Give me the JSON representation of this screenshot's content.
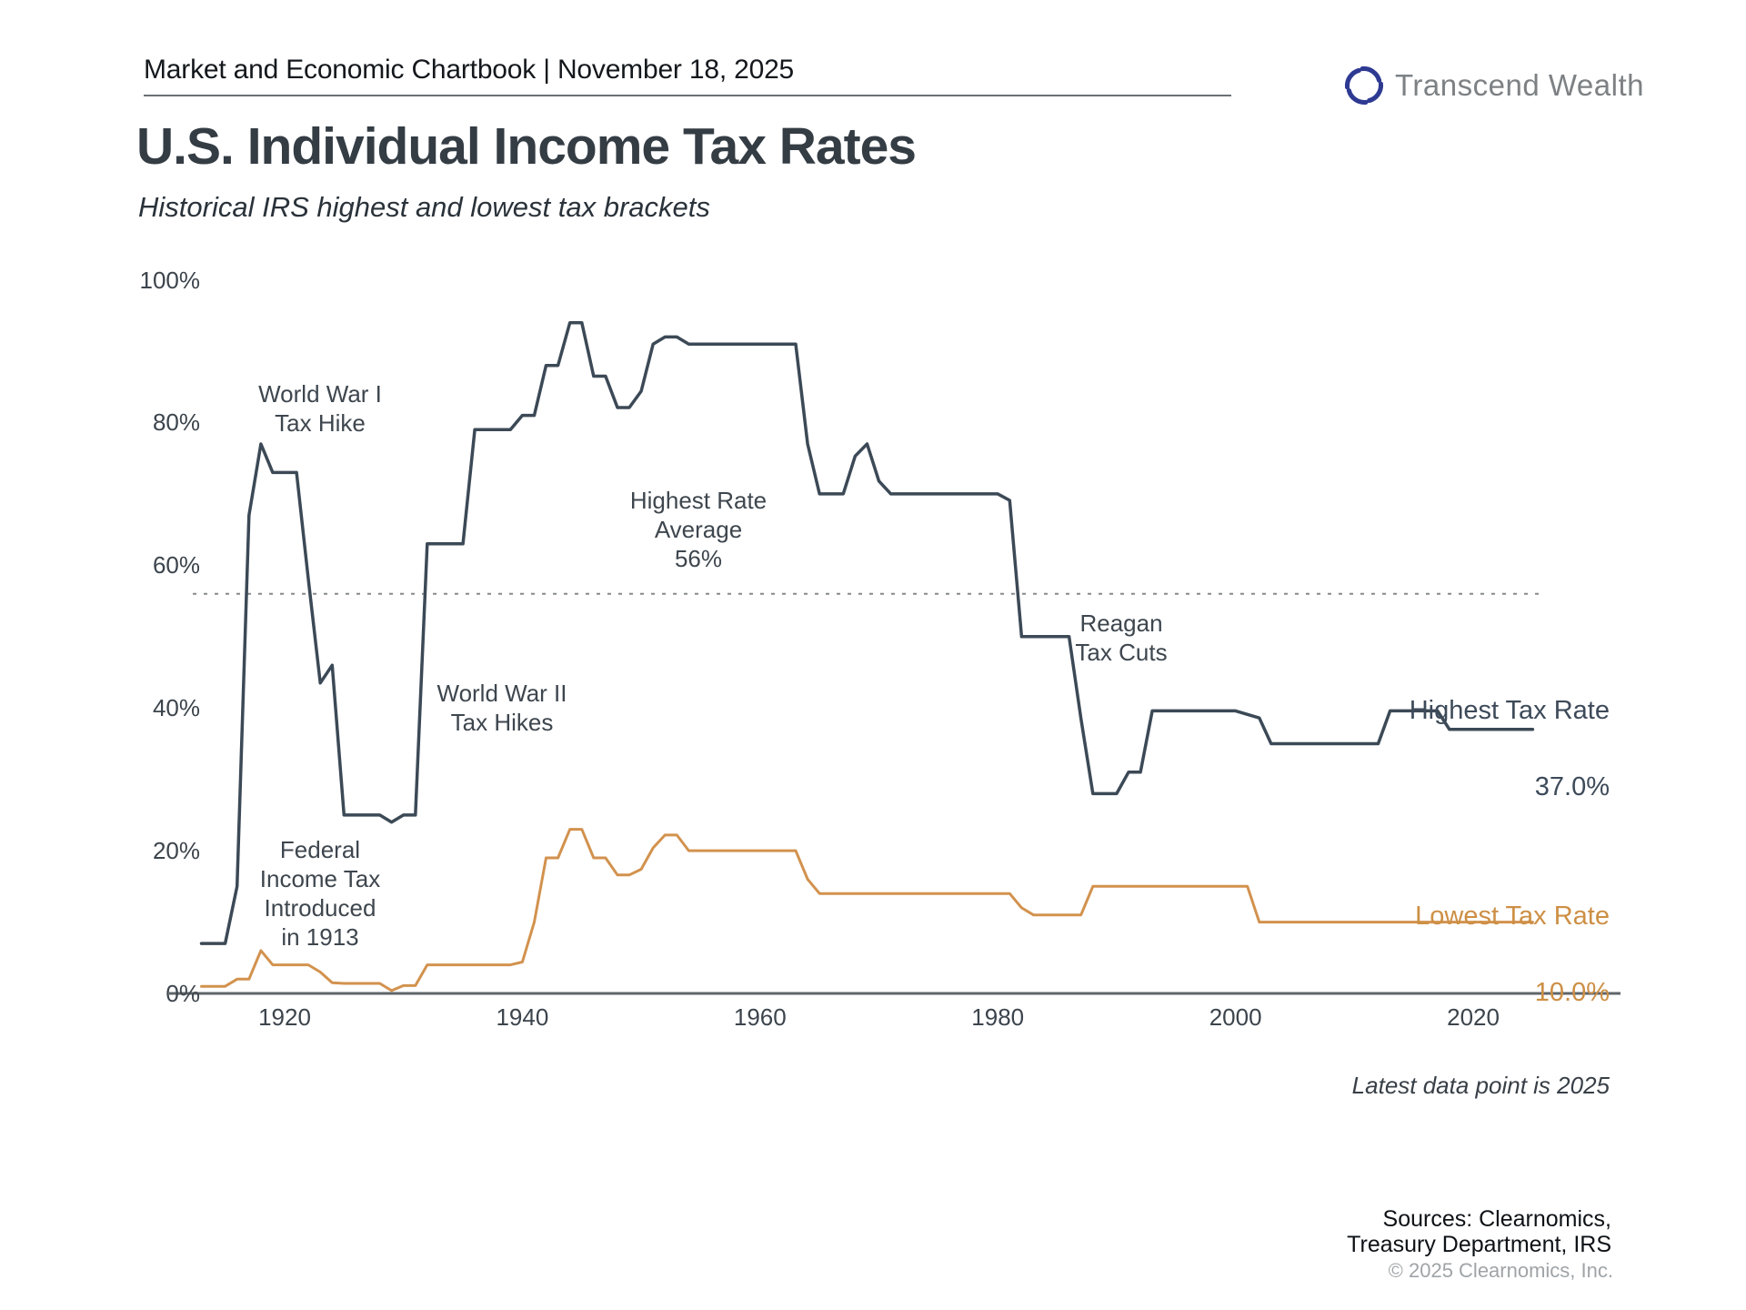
{
  "header": {
    "chartbook_label": "Market and Economic Chartbook | November 18, 2025",
    "brand": "Transcend Wealth",
    "brand_icon_color": "#2e3a92"
  },
  "title": "U.S. Individual Income Tax Rates",
  "subtitle": "Historical IRS highest and lowest tax brackets",
  "series_labels": {
    "highest": {
      "title": "Highest Tax Rate",
      "value": "37.0%"
    },
    "lowest": {
      "title": "Lowest Tax Rate",
      "value": "10.0%"
    }
  },
  "footer": {
    "latest_note": "Latest data point is 2025",
    "sources": "Sources: Clearnomics,\nTreasury Department, IRS",
    "copyright": "© 2025 Clearnomics, Inc."
  },
  "chart_data": {
    "type": "line",
    "x_axis": {
      "range": [
        1913,
        2025
      ],
      "ticks": [
        {
          "value": 1920,
          "label": "1920"
        },
        {
          "value": 1940,
          "label": "1940"
        },
        {
          "value": 1960,
          "label": "1960"
        },
        {
          "value": 1980,
          "label": "1980"
        },
        {
          "value": 2000,
          "label": "2000"
        },
        {
          "value": 2020,
          "label": "2020"
        }
      ]
    },
    "y_axis": {
      "range": [
        0,
        100
      ],
      "ticks": [
        {
          "value": 0,
          "label": "0%"
        },
        {
          "value": 20,
          "label": "20%"
        },
        {
          "value": 40,
          "label": "40%"
        },
        {
          "value": 60,
          "label": "60%"
        },
        {
          "value": 80,
          "label": "80%"
        },
        {
          "value": 100,
          "label": "100%"
        }
      ]
    },
    "average_line": {
      "value": 56,
      "style": "dotted",
      "color": "#85898d"
    },
    "series": [
      {
        "name": "Highest Tax Rate",
        "color": "#3c4956",
        "segments": [
          [
            1913,
            1915,
            7
          ],
          [
            1916,
            1916,
            15
          ],
          [
            1917,
            1917,
            67
          ],
          [
            1918,
            1918,
            77
          ],
          [
            1919,
            1921,
            73
          ],
          [
            1922,
            1922,
            58
          ],
          [
            1923,
            1923,
            43.5
          ],
          [
            1924,
            1924,
            46
          ],
          [
            1925,
            1928,
            25
          ],
          [
            1929,
            1929,
            24
          ],
          [
            1930,
            1931,
            25
          ],
          [
            1932,
            1935,
            63
          ],
          [
            1936,
            1939,
            79
          ],
          [
            1940,
            1941,
            81
          ],
          [
            1942,
            1943,
            88
          ],
          [
            1944,
            1945,
            94
          ],
          [
            1946,
            1947,
            86.5
          ],
          [
            1948,
            1949,
            82.1
          ],
          [
            1950,
            1950,
            84.4
          ],
          [
            1951,
            1951,
            91
          ],
          [
            1952,
            1953,
            92
          ],
          [
            1954,
            1963,
            91
          ],
          [
            1964,
            1964,
            77
          ],
          [
            1965,
            1967,
            70
          ],
          [
            1968,
            1968,
            75.3
          ],
          [
            1969,
            1969,
            77
          ],
          [
            1970,
            1970,
            71.8
          ],
          [
            1971,
            1980,
            70
          ],
          [
            1981,
            1981,
            69.1
          ],
          [
            1982,
            1986,
            50
          ],
          [
            1987,
            1987,
            38.5
          ],
          [
            1988,
            1990,
            28
          ],
          [
            1991,
            1992,
            31
          ],
          [
            1993,
            2000,
            39.6
          ],
          [
            2001,
            2001,
            39.1
          ],
          [
            2002,
            2002,
            38.6
          ],
          [
            2003,
            2012,
            35
          ],
          [
            2013,
            2017,
            39.6
          ],
          [
            2018,
            2025,
            37
          ]
        ]
      },
      {
        "name": "Lowest Tax Rate",
        "color": "#d2924e",
        "segments": [
          [
            1913,
            1915,
            1
          ],
          [
            1916,
            1917,
            2
          ],
          [
            1918,
            1918,
            6
          ],
          [
            1919,
            1922,
            4
          ],
          [
            1923,
            1923,
            3
          ],
          [
            1924,
            1924,
            1.5
          ],
          [
            1925,
            1928,
            1.4
          ],
          [
            1929,
            1929,
            0.4
          ],
          [
            1930,
            1931,
            1.1
          ],
          [
            1932,
            1939,
            4
          ],
          [
            1940,
            1940,
            4.4
          ],
          [
            1941,
            1941,
            10
          ],
          [
            1942,
            1943,
            19
          ],
          [
            1944,
            1945,
            23
          ],
          [
            1946,
            1947,
            19
          ],
          [
            1948,
            1949,
            16.6
          ],
          [
            1950,
            1950,
            17.4
          ],
          [
            1951,
            1951,
            20.4
          ],
          [
            1952,
            1953,
            22.2
          ],
          [
            1954,
            1963,
            20
          ],
          [
            1964,
            1964,
            16
          ],
          [
            1965,
            1981,
            14
          ],
          [
            1982,
            1982,
            12
          ],
          [
            1983,
            1987,
            11
          ],
          [
            1988,
            2001,
            15
          ],
          [
            2002,
            2025,
            10
          ]
        ]
      }
    ],
    "annotations": [
      {
        "id": "world-war-1",
        "text": "World War I\nTax Hike",
        "year": 1923,
        "pct": 82
      },
      {
        "id": "federal-income-tax",
        "text": "Federal\nIncome Tax\nIntroduced\nin 1913",
        "year": 1923,
        "pct": 14
      },
      {
        "id": "world-war-2",
        "text": "World War II\nTax Hikes",
        "year": 1938.3,
        "pct": 40
      },
      {
        "id": "highest-rate-avg",
        "text": "Highest Rate\nAverage\n56%",
        "year": 1954.8,
        "pct": 65
      },
      {
        "id": "reagan-tax-cuts",
        "text": "Reagan\nTax Cuts",
        "year": 1990.4,
        "pct": 49.8
      }
    ]
  }
}
